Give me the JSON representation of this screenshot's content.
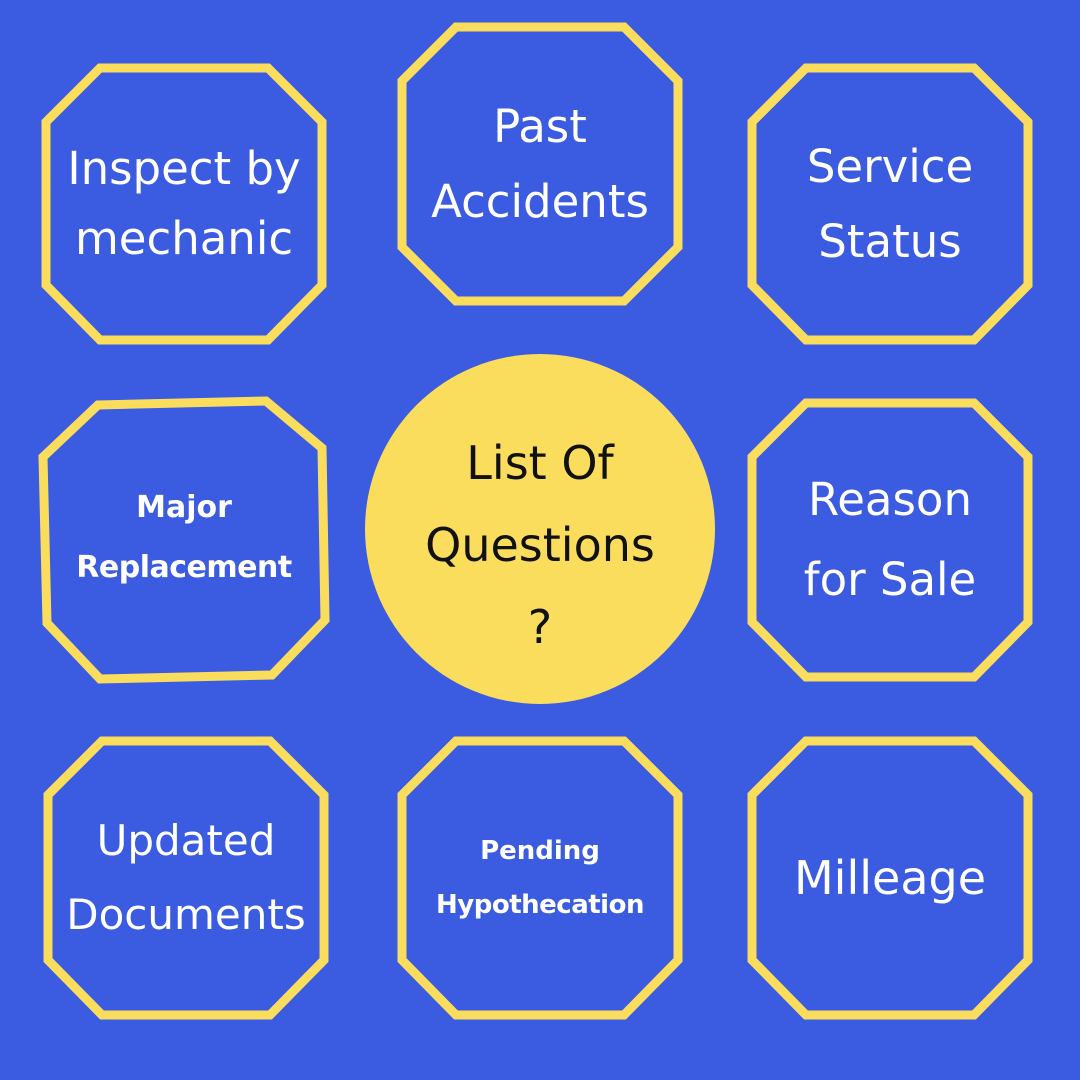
{
  "colors": {
    "background": "#3b5be0",
    "octagon_stroke": "#fbdd5e",
    "circle_fill": "#fbdd5e",
    "outer_text": "#ffffff",
    "center_text": "#111111"
  },
  "center": {
    "line1": "List Of",
    "line2": "Questions",
    "line3": "?"
  },
  "items": [
    {
      "line1": "Inspect by",
      "line2": "mechanic"
    },
    {
      "line1": "Past",
      "line2": "Accidents"
    },
    {
      "line1": "Service",
      "line2": "Status"
    },
    {
      "line1": "Major",
      "line2": "Replacement"
    },
    {
      "line1": "Reason",
      "line2": "for Sale"
    },
    {
      "line1": "Updated",
      "line2": "Documents"
    },
    {
      "line1": "Pending",
      "line2": "Hypothecation"
    },
    {
      "line1": "Milleage"
    }
  ]
}
